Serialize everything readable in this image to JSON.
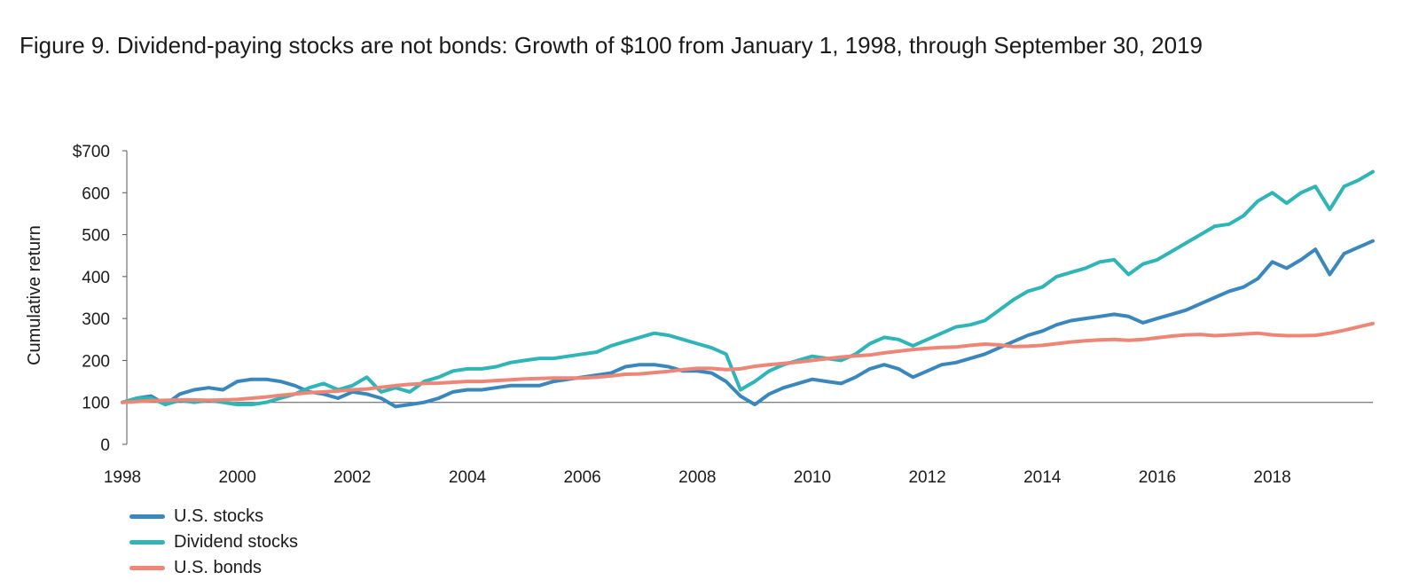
{
  "title": "Figure 9. Dividend-paying stocks are not bonds: Growth of $100 from January 1, 1998, through September 30, 2019",
  "chart_data": {
    "type": "line",
    "title": "Figure 9. Dividend-paying stocks are not bonds: Growth of $100 from January 1, 1998, through September 30, 2019",
    "ylabel": "Cumulative return",
    "xlabel": "",
    "xlim": [
      1998,
      2019.75
    ],
    "ylim": [
      0,
      700
    ],
    "x_ticks": [
      "1998",
      "2000",
      "2002",
      "2004",
      "2006",
      "2008",
      "2010",
      "2012",
      "2014",
      "2016",
      "2018"
    ],
    "y_ticks": [
      "0",
      "100",
      "200",
      "300",
      "400",
      "500",
      "600",
      "$700"
    ],
    "reference_line": 100,
    "grid": false,
    "legend_position": "bottom-left",
    "series": [
      {
        "name": "U.S. stocks",
        "color": "#3a87bd",
        "x": [
          1998.0,
          1998.25,
          1998.5,
          1998.75,
          1999.0,
          1999.25,
          1999.5,
          1999.75,
          2000.0,
          2000.25,
          2000.5,
          2000.75,
          2001.0,
          2001.25,
          2001.5,
          2001.75,
          2002.0,
          2002.25,
          2002.5,
          2002.75,
          2003.0,
          2003.25,
          2003.5,
          2003.75,
          2004.0,
          2004.25,
          2004.5,
          2004.75,
          2005.0,
          2005.25,
          2005.5,
          2005.75,
          2006.0,
          2006.25,
          2006.5,
          2006.75,
          2007.0,
          2007.25,
          2007.5,
          2007.75,
          2008.0,
          2008.25,
          2008.5,
          2008.75,
          2009.0,
          2009.25,
          2009.5,
          2009.75,
          2010.0,
          2010.25,
          2010.5,
          2010.75,
          2011.0,
          2011.25,
          2011.5,
          2011.75,
          2012.0,
          2012.25,
          2012.5,
          2012.75,
          2013.0,
          2013.25,
          2013.5,
          2013.75,
          2014.0,
          2014.25,
          2014.5,
          2014.75,
          2015.0,
          2015.25,
          2015.5,
          2015.75,
          2016.0,
          2016.25,
          2016.5,
          2016.75,
          2017.0,
          2017.25,
          2017.5,
          2017.75,
          2018.0,
          2018.25,
          2018.5,
          2018.75,
          2019.0,
          2019.25,
          2019.5,
          2019.75
        ],
        "values": [
          100,
          110,
          115,
          95,
          120,
          130,
          135,
          130,
          150,
          155,
          155,
          150,
          140,
          125,
          120,
          110,
          125,
          120,
          110,
          90,
          95,
          100,
          110,
          125,
          130,
          130,
          135,
          140,
          140,
          140,
          150,
          155,
          160,
          165,
          170,
          185,
          190,
          190,
          185,
          175,
          175,
          170,
          150,
          115,
          95,
          120,
          135,
          145,
          155,
          150,
          145,
          160,
          180,
          190,
          180,
          160,
          175,
          190,
          195,
          205,
          215,
          230,
          245,
          260,
          270,
          285,
          295,
          300,
          305,
          310,
          305,
          290,
          300,
          310,
          320,
          335,
          350,
          365,
          375,
          395,
          435,
          420,
          440,
          465,
          405,
          455,
          470,
          485
        ]
      },
      {
        "name": "Dividend stocks",
        "color": "#2fb5b8",
        "x": [
          1998.0,
          1998.25,
          1998.5,
          1998.75,
          1999.0,
          1999.25,
          1999.5,
          1999.75,
          2000.0,
          2000.25,
          2000.5,
          2000.75,
          2001.0,
          2001.25,
          2001.5,
          2001.75,
          2002.0,
          2002.25,
          2002.5,
          2002.75,
          2003.0,
          2003.25,
          2003.5,
          2003.75,
          2004.0,
          2004.25,
          2004.5,
          2004.75,
          2005.0,
          2005.25,
          2005.5,
          2005.75,
          2006.0,
          2006.25,
          2006.5,
          2006.75,
          2007.0,
          2007.25,
          2007.5,
          2007.75,
          2008.0,
          2008.25,
          2008.5,
          2008.75,
          2009.0,
          2009.25,
          2009.5,
          2009.75,
          2010.0,
          2010.25,
          2010.5,
          2010.75,
          2011.0,
          2011.25,
          2011.5,
          2011.75,
          2012.0,
          2012.25,
          2012.5,
          2012.75,
          2013.0,
          2013.25,
          2013.5,
          2013.75,
          2014.0,
          2014.25,
          2014.5,
          2014.75,
          2015.0,
          2015.25,
          2015.5,
          2015.75,
          2016.0,
          2016.25,
          2016.5,
          2016.75,
          2017.0,
          2017.25,
          2017.5,
          2017.75,
          2018.0,
          2018.25,
          2018.5,
          2018.75,
          2019.0,
          2019.25,
          2019.5,
          2019.75
        ],
        "values": [
          100,
          110,
          110,
          95,
          105,
          100,
          105,
          100,
          95,
          95,
          100,
          110,
          120,
          135,
          145,
          130,
          140,
          160,
          125,
          135,
          125,
          150,
          160,
          175,
          180,
          180,
          185,
          195,
          200,
          205,
          205,
          210,
          215,
          220,
          235,
          245,
          255,
          265,
          260,
          250,
          240,
          230,
          215,
          130,
          150,
          175,
          190,
          200,
          210,
          205,
          200,
          215,
          240,
          255,
          250,
          235,
          250,
          265,
          280,
          285,
          295,
          320,
          345,
          365,
          375,
          400,
          410,
          420,
          435,
          440,
          405,
          430,
          440,
          460,
          480,
          500,
          520,
          525,
          545,
          580,
          600,
          575,
          600,
          615,
          560,
          615,
          630,
          650
        ]
      },
      {
        "name": "U.S. bonds",
        "color": "#ee8677",
        "x": [
          1998.0,
          1998.25,
          1998.5,
          1998.75,
          1999.0,
          1999.25,
          1999.5,
          1999.75,
          2000.0,
          2000.25,
          2000.5,
          2000.75,
          2001.0,
          2001.25,
          2001.5,
          2001.75,
          2002.0,
          2002.25,
          2002.5,
          2002.75,
          2003.0,
          2003.25,
          2003.5,
          2003.75,
          2004.0,
          2004.25,
          2004.5,
          2004.75,
          2005.0,
          2005.25,
          2005.5,
          2005.75,
          2006.0,
          2006.25,
          2006.5,
          2006.75,
          2007.0,
          2007.25,
          2007.5,
          2007.75,
          2008.0,
          2008.25,
          2008.5,
          2008.75,
          2009.0,
          2009.25,
          2009.5,
          2009.75,
          2010.0,
          2010.25,
          2010.5,
          2010.75,
          2011.0,
          2011.25,
          2011.5,
          2011.75,
          2012.0,
          2012.25,
          2012.5,
          2012.75,
          2013.0,
          2013.25,
          2013.5,
          2013.75,
          2014.0,
          2014.25,
          2014.5,
          2014.75,
          2015.0,
          2015.25,
          2015.5,
          2015.75,
          2016.0,
          2016.25,
          2016.5,
          2016.75,
          2017.0,
          2017.25,
          2017.5,
          2017.75,
          2018.0,
          2018.25,
          2018.5,
          2018.75,
          2019.0,
          2019.25,
          2019.5,
          2019.75
        ],
        "values": [
          100,
          102,
          104,
          105,
          106,
          106,
          105,
          106,
          107,
          110,
          113,
          117,
          120,
          123,
          125,
          127,
          130,
          132,
          136,
          140,
          143,
          145,
          146,
          148,
          150,
          150,
          152,
          154,
          156,
          157,
          158,
          158,
          158,
          160,
          163,
          167,
          168,
          171,
          174,
          178,
          181,
          181,
          178,
          180,
          186,
          190,
          193,
          196,
          200,
          204,
          208,
          211,
          213,
          218,
          222,
          226,
          229,
          231,
          232,
          236,
          239,
          237,
          233,
          234,
          236,
          240,
          244,
          247,
          249,
          250,
          248,
          250,
          254,
          258,
          261,
          262,
          259,
          261,
          263,
          265,
          261,
          259,
          259,
          260,
          265,
          272,
          280,
          288
        ]
      }
    ]
  }
}
